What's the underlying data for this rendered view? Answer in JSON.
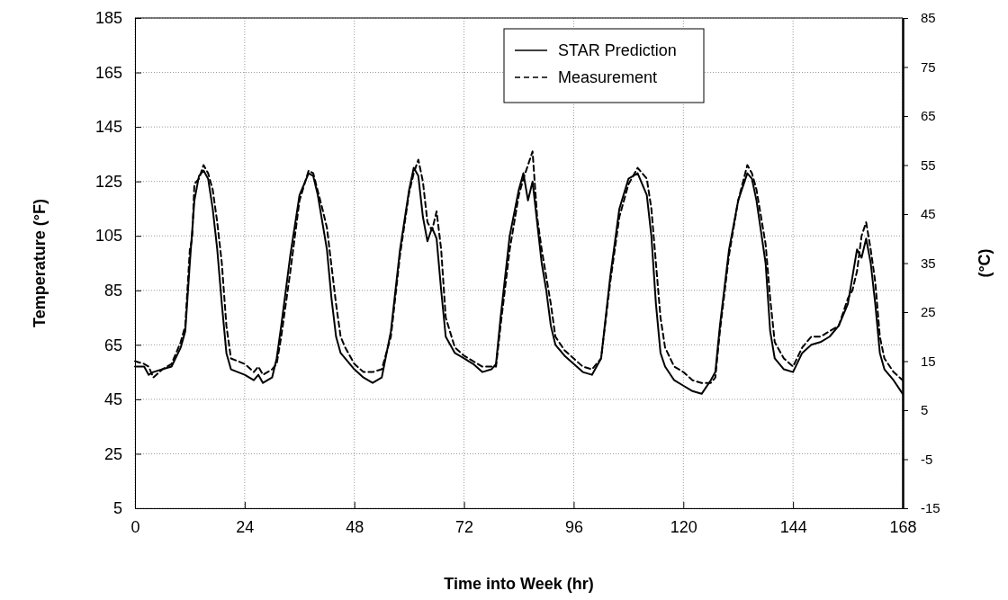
{
  "chart_data": {
    "type": "line",
    "xlabel": "Time into Week (hr)",
    "ylabel": "Temperature (°F)",
    "y2label": "(°C)",
    "xlim": [
      0,
      168
    ],
    "xticks": [
      0,
      24,
      48,
      72,
      96,
      120,
      144,
      168
    ],
    "ylim": [
      5,
      185
    ],
    "yticks": [
      5,
      25,
      45,
      65,
      85,
      105,
      125,
      145,
      165,
      185
    ],
    "y2lim": [
      -15,
      85
    ],
    "y2ticks": [
      -15,
      -5,
      5,
      15,
      25,
      35,
      45,
      55,
      65,
      75,
      85
    ],
    "grid": true,
    "legend": "top right",
    "marker": "none",
    "series": [
      {
        "name": "STAR Prediction",
        "color": "#000000",
        "line_style": "solid",
        "x": [
          0,
          2,
          3,
          4,
          6,
          8,
          10,
          11,
          12,
          13,
          14,
          15,
          16,
          17,
          18,
          19,
          20,
          21,
          24,
          26,
          27,
          28,
          30,
          31,
          32,
          34,
          36,
          38,
          39,
          40,
          42,
          43,
          44,
          45,
          48,
          50,
          52,
          54,
          56,
          58,
          60,
          61,
          62,
          63,
          64,
          65,
          66,
          67,
          68,
          70,
          72,
          74,
          76,
          78,
          79,
          80,
          82,
          84,
          85,
          86,
          87,
          88,
          89,
          90,
          91,
          92,
          94,
          96,
          98,
          100,
          102,
          104,
          106,
          108,
          110,
          112,
          113,
          114,
          115,
          116,
          118,
          120,
          122,
          124,
          126,
          127,
          128,
          130,
          132,
          134,
          135,
          136,
          138,
          139,
          140,
          142,
          144,
          146,
          148,
          150,
          152,
          154,
          156,
          157,
          158,
          159,
          160,
          161,
          162,
          163,
          164,
          166,
          168
        ],
        "values": [
          57,
          57,
          54,
          55,
          56,
          57,
          64,
          70,
          95,
          118,
          127,
          129,
          126,
          115,
          100,
          80,
          62,
          56,
          54,
          52,
          54,
          51,
          53,
          60,
          72,
          98,
          120,
          128,
          127,
          120,
          100,
          82,
          68,
          62,
          56,
          53,
          51,
          53,
          70,
          100,
          122,
          130,
          127,
          112,
          103,
          108,
          104,
          85,
          68,
          62,
          60,
          58,
          55,
          56,
          58,
          75,
          105,
          122,
          128,
          118,
          125,
          110,
          95,
          85,
          72,
          65,
          61,
          58,
          55,
          54,
          60,
          90,
          115,
          126,
          128,
          120,
          105,
          80,
          62,
          57,
          52,
          50,
          48,
          47,
          52,
          55,
          72,
          100,
          118,
          128,
          126,
          118,
          95,
          70,
          60,
          56,
          55,
          62,
          65,
          66,
          68,
          72,
          80,
          90,
          100,
          97,
          104,
          95,
          80,
          62,
          56,
          52,
          47
        ]
      },
      {
        "name": "Measurement",
        "color": "#000000",
        "line_style": "dashed",
        "x": [
          0,
          2,
          3,
          4,
          6,
          8,
          10,
          11,
          12,
          12.5,
          13,
          14,
          15,
          16,
          17,
          18,
          19,
          20,
          21,
          24,
          26,
          27,
          28,
          30,
          31,
          32,
          34,
          36,
          38,
          39,
          41,
          42,
          44,
          45,
          46,
          48,
          50,
          52,
          54,
          56,
          58,
          60,
          61,
          62,
          63,
          64,
          65,
          66,
          67,
          68,
          70,
          72,
          74,
          76,
          78,
          79,
          80,
          82,
          84,
          85,
          86,
          87,
          88,
          89,
          90,
          91,
          92,
          94,
          96,
          98,
          100,
          102,
          104,
          106,
          108,
          110,
          112,
          113,
          114,
          115,
          116,
          118,
          120,
          122,
          124,
          126,
          127,
          128,
          130,
          132,
          134,
          135,
          136,
          138,
          139,
          140,
          142,
          144,
          146,
          148,
          150,
          152,
          154,
          156,
          157,
          158,
          159,
          160,
          161,
          162,
          163,
          164,
          166,
          168
        ],
        "values": [
          59,
          58,
          57,
          53,
          56,
          58,
          66,
          72,
          100,
          104,
          124,
          126,
          131,
          128,
          122,
          110,
          95,
          72,
          60,
          58,
          55,
          57,
          54,
          56,
          58,
          68,
          92,
          118,
          129,
          128,
          115,
          108,
          80,
          68,
          64,
          58,
          55,
          55,
          56,
          68,
          98,
          121,
          128,
          133,
          125,
          110,
          107,
          114,
          100,
          75,
          64,
          61,
          59,
          57,
          57,
          57,
          72,
          100,
          120,
          126,
          131,
          136,
          112,
          100,
          90,
          80,
          68,
          63,
          60,
          57,
          56,
          60,
          88,
          112,
          124,
          130,
          126,
          115,
          95,
          75,
          64,
          57,
          55,
          52,
          51,
          51,
          53,
          70,
          98,
          118,
          131,
          128,
          122,
          102,
          82,
          66,
          60,
          57,
          64,
          68,
          68,
          70,
          72,
          82,
          85,
          92,
          105,
          110,
          100,
          88,
          68,
          60,
          55,
          52
        ]
      }
    ]
  }
}
